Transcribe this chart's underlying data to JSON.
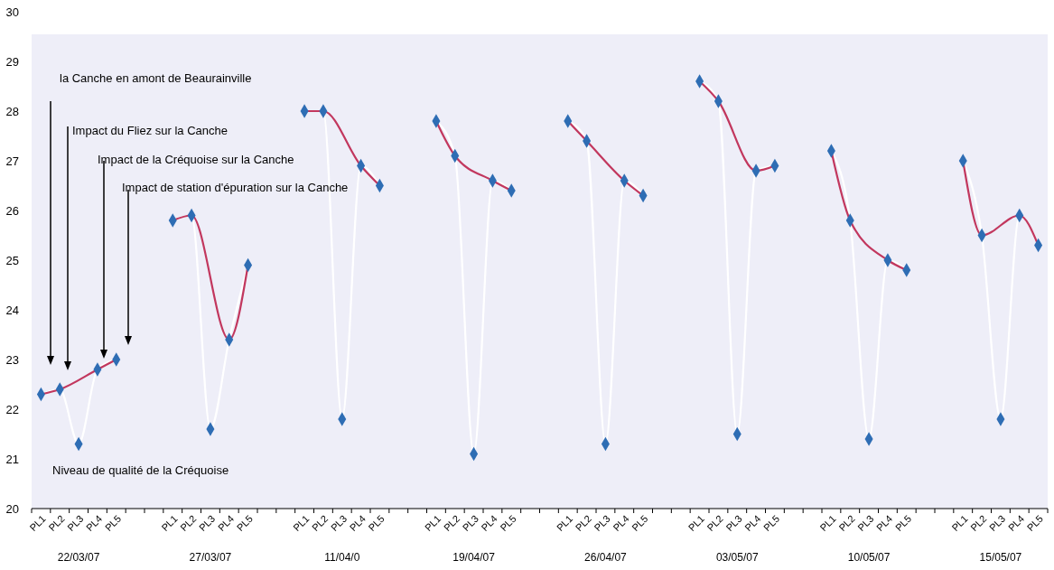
{
  "chart_data": {
    "type": "line",
    "categories": [
      "PL1",
      "PL2",
      "PL3",
      "PL4",
      "PL5",
      null,
      null,
      "PL1",
      "PL2",
      "PL3",
      "PL4",
      "PL5",
      null,
      null,
      "PL1",
      "PL2",
      "PL3",
      "PL4",
      "PL5",
      null,
      null,
      "PL1",
      "PL2",
      "PL3",
      "PL4",
      "PL5",
      null,
      null,
      "PL1",
      "PL2",
      "PL3",
      "PL4",
      "PL5",
      null,
      null,
      "PL1",
      "PL2",
      "PL3",
      "PL4",
      "PL5",
      null,
      null,
      "PL1",
      "PL2",
      "PL3",
      "PL4",
      "PL5",
      null,
      null,
      "PL1",
      "PL2",
      "PL3",
      "PL4",
      "PL5"
    ],
    "series": [
      {
        "color": "#ffffff",
        "values": [
          22.3,
          22.4,
          21.3,
          22.8,
          23.0,
          null,
          null,
          25.8,
          25.9,
          21.6,
          23.4,
          24.9,
          null,
          null,
          28.0,
          28.0,
          21.8,
          26.9,
          26.5,
          null,
          null,
          27.8,
          27.1,
          21.1,
          26.6,
          26.4,
          null,
          null,
          27.8,
          27.4,
          21.3,
          26.6,
          26.3,
          null,
          null,
          28.6,
          28.2,
          21.5,
          26.8,
          26.9,
          null,
          null,
          27.2,
          25.8,
          21.4,
          25.0,
          24.8,
          null,
          null,
          27.0,
          25.5,
          21.8,
          25.9,
          25.3
        ]
      },
      {
        "color": "#c2375e",
        "values": [
          22.3,
          22.4,
          null,
          22.8,
          23.0,
          null,
          null,
          25.8,
          25.9,
          null,
          23.4,
          24.9,
          null,
          null,
          28.0,
          28.0,
          null,
          26.9,
          26.5,
          null,
          null,
          27.8,
          27.1,
          null,
          26.6,
          26.4,
          null,
          null,
          27.8,
          27.4,
          null,
          26.6,
          26.3,
          null,
          null,
          28.6,
          28.2,
          null,
          26.8,
          26.9,
          null,
          null,
          27.2,
          25.8,
          null,
          25.0,
          24.8,
          null,
          null,
          27.0,
          25.5,
          null,
          25.9,
          25.3
        ]
      },
      {
        "type": "scatter",
        "color": "#2e6db4",
        "marker": "diamond",
        "values": [
          22.3,
          22.4,
          21.3,
          22.8,
          23.0,
          null,
          null,
          25.8,
          25.9,
          21.6,
          23.4,
          24.9,
          null,
          null,
          28.0,
          28.0,
          21.8,
          26.9,
          26.5,
          null,
          null,
          27.8,
          27.1,
          21.1,
          26.6,
          26.4,
          null,
          null,
          27.8,
          27.4,
          21.3,
          26.6,
          26.3,
          null,
          null,
          28.6,
          28.2,
          21.5,
          26.8,
          26.9,
          null,
          null,
          27.2,
          25.8,
          21.4,
          25.0,
          24.8,
          null,
          null,
          27.0,
          25.5,
          21.8,
          25.9,
          25.3
        ]
      }
    ],
    "ylim": [
      20,
      30
    ],
    "yticks": [
      20,
      21,
      22,
      23,
      24,
      25,
      26,
      27,
      28,
      29,
      30
    ],
    "grid": false,
    "annotations": [
      "la Canche en amont de Beaurainville",
      "Impact du Fliez sur la Canche",
      "Impact de la Créquoise sur la Canche",
      "Impact de station d'épuration sur la Canche",
      "Niveau de qualité de la Créquoise",
      "22/03/07",
      "27/03/07",
      "11/04/0",
      "19/04/07",
      "26/04/07",
      "03/05/07",
      "10/05/07",
      "15/05/07"
    ]
  }
}
